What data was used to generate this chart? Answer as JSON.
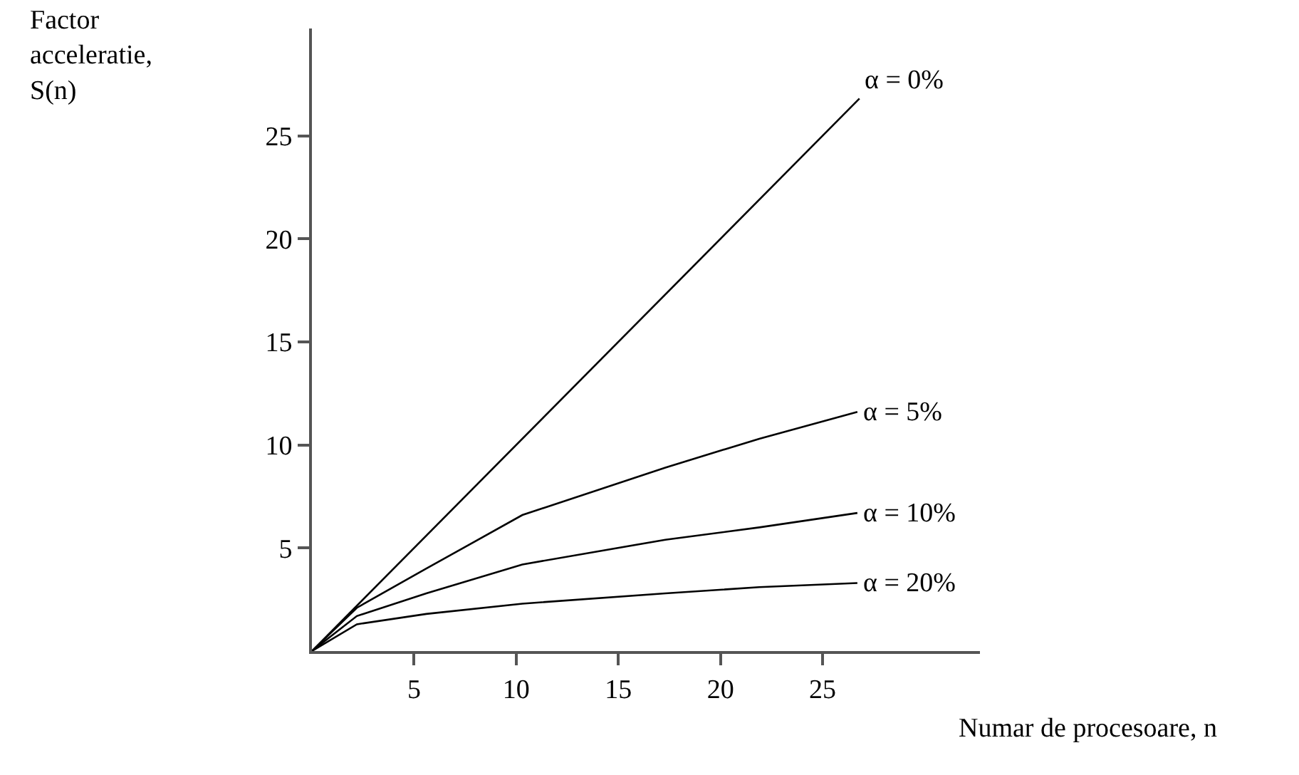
{
  "chart_data": {
    "type": "line",
    "xlabel": "Numar de procesoare, n",
    "ylabel": "Factor\nacceleratie,\nS(n)",
    "xlim": [
      0,
      32.7
    ],
    "ylim": [
      0,
      30.2
    ],
    "xticks": [
      5,
      10,
      15,
      20,
      25
    ],
    "yticks": [
      5,
      10,
      15,
      20,
      25
    ],
    "legend": false,
    "marker": "none",
    "line_style": "solid",
    "series": [
      {
        "name": "α = 0%",
        "color": "#000000",
        "x": [
          0,
          26.8
        ],
        "values": [
          0,
          26.8
        ]
      },
      {
        "name": "α = 5%",
        "color": "#000000",
        "x": [
          0,
          2.2,
          5.6,
          10.3,
          17.3,
          21.9,
          26.7
        ],
        "values": [
          0,
          2.1,
          4.0,
          6.6,
          8.9,
          10.3,
          11.6
        ]
      },
      {
        "name": "α = 10%",
        "color": "#000000",
        "x": [
          0,
          2.2,
          5.6,
          10.3,
          17.3,
          21.9,
          26.7
        ],
        "values": [
          0,
          1.7,
          2.8,
          4.2,
          5.4,
          6.0,
          6.7
        ]
      },
      {
        "name": "α = 20%",
        "color": "#000000",
        "x": [
          0,
          2.2,
          5.6,
          10.3,
          17.3,
          21.9,
          26.7
        ],
        "values": [
          0,
          1.3,
          1.8,
          2.3,
          2.8,
          3.1,
          3.3
        ]
      }
    ]
  }
}
